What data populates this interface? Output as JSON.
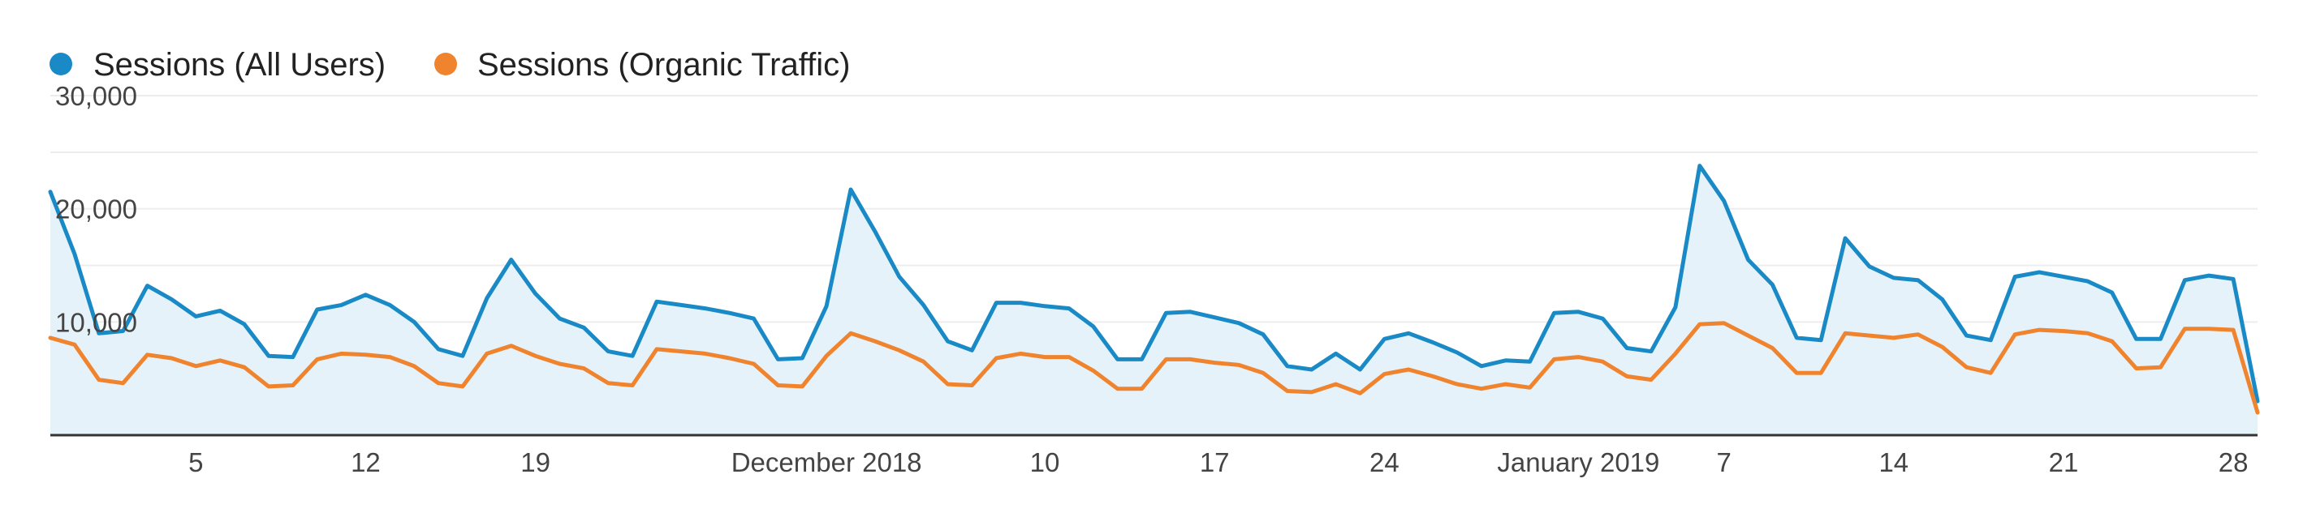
{
  "chart_data": {
    "type": "area",
    "legend": [
      {
        "label": "Sessions (All Users)",
        "color": "#1a8ac6"
      },
      {
        "label": "Sessions (Organic Traffic)",
        "color": "#f0842e"
      }
    ],
    "y_ticks": [
      "30,000",
      "20,000",
      "10,000"
    ],
    "y_tick_values": [
      30000,
      20000,
      10000
    ],
    "ylim": [
      0,
      30000
    ],
    "x_tick_labels": [
      {
        "label": "5",
        "index": 6
      },
      {
        "label": "12",
        "index": 13
      },
      {
        "label": "19",
        "index": 20
      },
      {
        "label": "December 2018",
        "index": 32
      },
      {
        "label": "10",
        "index": 41
      },
      {
        "label": "17",
        "index": 48
      },
      {
        "label": "24",
        "index": 55
      },
      {
        "label": "January 2019",
        "index": 63
      },
      {
        "label": "7",
        "index": 69
      },
      {
        "label": "14",
        "index": 76
      },
      {
        "label": "21",
        "index": 83
      },
      {
        "label": "28",
        "index": 90
      }
    ],
    "grid": true,
    "legend_position": "top-left",
    "series": [
      {
        "name": "Sessions (All Users)",
        "color": "#1a8ac6",
        "fill": "#e6f2f9",
        "values": [
          21500,
          16000,
          9000,
          9200,
          13200,
          12000,
          10500,
          11000,
          9800,
          7000,
          6900,
          11100,
          11500,
          12400,
          11500,
          10000,
          7600,
          7000,
          12100,
          15500,
          12500,
          10300,
          9500,
          7400,
          7000,
          11800,
          11500,
          11200,
          10800,
          10300,
          6700,
          6800,
          11400,
          21700,
          18000,
          14000,
          11500,
          8300,
          7500,
          11700,
          11700,
          11400,
          11200,
          9600,
          6700,
          6700,
          10800,
          10900,
          10400,
          9900,
          8900,
          6100,
          5800,
          7200,
          5800,
          8500,
          9000,
          8200,
          7300,
          6100,
          6600,
          6500,
          10800,
          10900,
          10300,
          7700,
          7400,
          11300,
          23800,
          20700,
          15500,
          13300,
          8600,
          8400,
          17400,
          14900,
          13900,
          13700,
          12000,
          8800,
          8400,
          14000,
          14400,
          14000,
          13600,
          12600,
          8500,
          8500,
          13700,
          14100,
          13800,
          3000
        ]
      },
      {
        "name": "Sessions (Organic Traffic)",
        "color": "#f0842e",
        "values": [
          8600,
          8000,
          4900,
          4600,
          7100,
          6800,
          6100,
          6600,
          6000,
          4300,
          4400,
          6700,
          7200,
          7100,
          6900,
          6100,
          4600,
          4300,
          7200,
          7900,
          7000,
          6300,
          5900,
          4600,
          4400,
          7600,
          7400,
          7200,
          6800,
          6300,
          4400,
          4300,
          7000,
          9000,
          8300,
          7500,
          6500,
          4500,
          4400,
          6800,
          7200,
          6900,
          6900,
          5700,
          4100,
          4100,
          6700,
          6700,
          6400,
          6200,
          5500,
          3900,
          3800,
          4500,
          3700,
          5400,
          5800,
          5200,
          4500,
          4100,
          4500,
          4200,
          6700,
          6900,
          6500,
          5200,
          4900,
          7200,
          9800,
          9900,
          8800,
          7700,
          5500,
          5500,
          9000,
          8800,
          8600,
          8900,
          7800,
          6000,
          5500,
          8900,
          9300,
          9200,
          9000,
          8300,
          5900,
          6000,
          9400,
          9400,
          9300,
          2000
        ]
      }
    ]
  }
}
